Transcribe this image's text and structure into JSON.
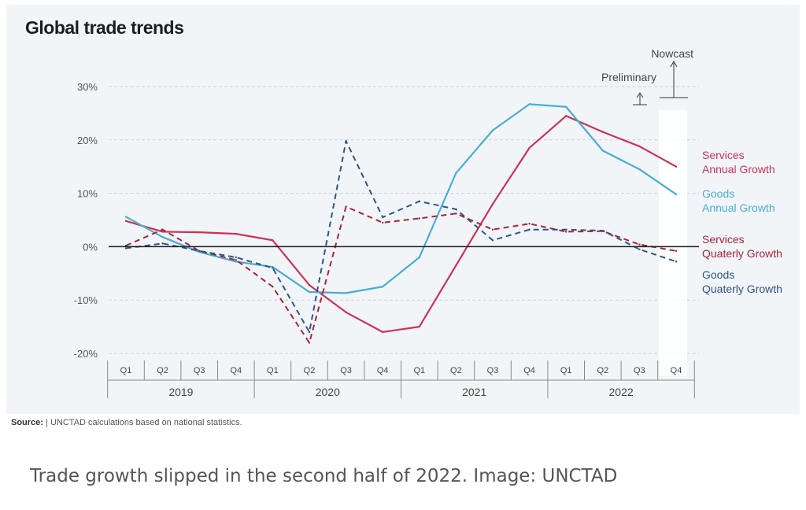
{
  "chart_data": {
    "type": "line",
    "title": "Global trade trends",
    "categories": [
      "Q1",
      "Q2",
      "Q3",
      "Q4",
      "Q1",
      "Q2",
      "Q3",
      "Q4",
      "Q1",
      "Q2",
      "Q3",
      "Q4",
      "Q1",
      "Q2",
      "Q3",
      "Q4"
    ],
    "years": [
      "2019",
      "2020",
      "2021",
      "2022"
    ],
    "ylim": [
      -20,
      30
    ],
    "yticks": [
      30,
      20,
      10,
      0,
      -10,
      -20
    ],
    "ytick_labels": [
      "30%",
      "20%",
      "10%",
      "0%",
      "-10%",
      "-20%"
    ],
    "grid": true,
    "legend_position": "right",
    "series": [
      {
        "name": "Services Annual Growth",
        "legend_lines": [
          "Services",
          "Annual Growth"
        ],
        "color": "#cc3355",
        "dash": false,
        "values": [
          4.8,
          2.8,
          2.7,
          2.4,
          1.2,
          -7.2,
          -12.3,
          -16.0,
          -15.0,
          -3.5,
          8.0,
          18.5,
          24.5,
          21.5,
          18.8,
          15.0
        ]
      },
      {
        "name": "Goods Annual Growth",
        "legend_lines": [
          "Goods",
          "Annual Growth"
        ],
        "color": "#4aaed0",
        "dash": false,
        "values": [
          5.6,
          1.8,
          -1.0,
          -2.8,
          -3.8,
          -8.5,
          -8.7,
          -7.5,
          -2.0,
          13.8,
          21.8,
          26.7,
          26.2,
          18.0,
          14.5,
          9.8
        ]
      },
      {
        "name": "Services Quaterly Growth",
        "legend_lines": [
          "Services",
          "Quaterly Growth"
        ],
        "color": "#a8243a",
        "dash": true,
        "values": [
          0.2,
          3.2,
          -0.8,
          -2.5,
          -7.5,
          -18.0,
          7.5,
          4.5,
          5.3,
          6.2,
          3.2,
          4.3,
          2.8,
          2.9,
          0.4,
          -0.8
        ]
      },
      {
        "name": "Goods Quaterly Growth",
        "legend_lines": [
          "Goods",
          "Quaterly Growth"
        ],
        "color": "#2e5585",
        "dash": true,
        "values": [
          -0.3,
          0.6,
          -0.8,
          -2.0,
          -4.0,
          -16.0,
          19.8,
          5.5,
          8.5,
          7.0,
          1.2,
          3.2,
          3.2,
          3.0,
          -0.5,
          -2.8
        ]
      }
    ],
    "annotations": [
      {
        "text": "Preliminary"
      },
      {
        "text": "Nowcast"
      }
    ]
  },
  "source": {
    "label": "Source:",
    "text": " | UNCTAD calculations based on national statistics."
  },
  "caption": "Trade growth slipped in the second half of 2022. Image: UNCTAD"
}
